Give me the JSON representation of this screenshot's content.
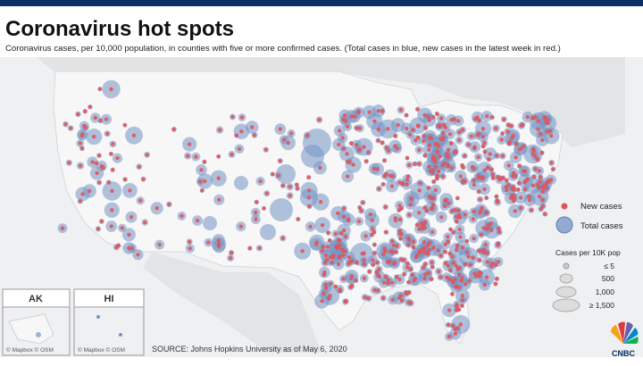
{
  "header": {
    "title": "Coronavirus hot spots",
    "subtitle": "Coronavirus cases, per 10,000 population, in counties with five or more confirmed cases. (Total cases  in blue, new cases in the latest week  in red.)"
  },
  "legend": {
    "new_cases": "New cases",
    "total_cases": "Total cases",
    "size_title": "Cases per 10K pop",
    "sizes": [
      "≤ 5",
      "500",
      "1,000",
      "≥ 1,500"
    ]
  },
  "insets": {
    "alaska": "AK",
    "hawaii": "HI",
    "attribution_ak": "© Mapbox © OSM",
    "attribution_hi": "© Mapbox © OSM"
  },
  "source": "SOURCE: Johns Hopkins University as of May 6, 2020",
  "logo": "CNBC"
}
